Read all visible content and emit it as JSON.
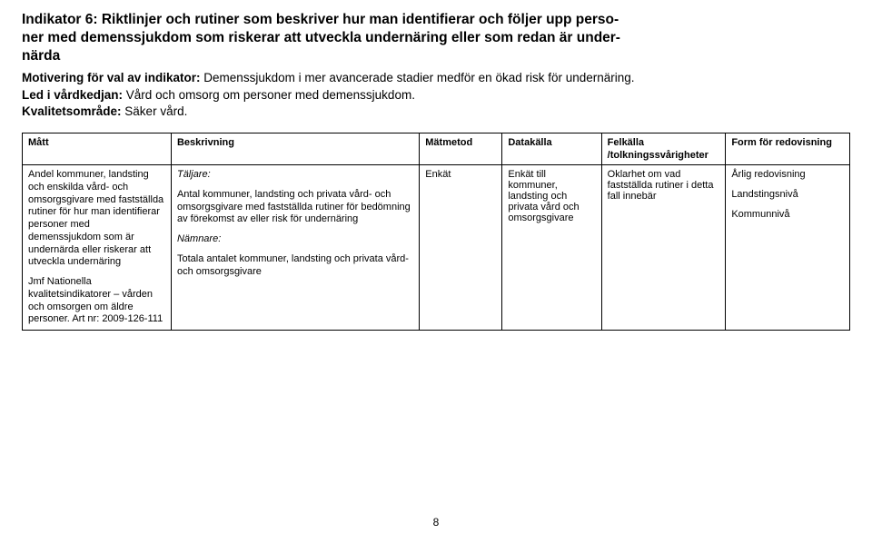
{
  "heading": {
    "line1": "Indikator 6: Riktlinjer och rutiner som beskriver hur man identifierar och följer upp perso-",
    "line2": "ner med demenssjukdom som riskerar att utveckla undernäring eller som redan är under-",
    "line3": "närda"
  },
  "sub": {
    "motivering_label": "Motivering för val av indikator:",
    "motivering_text": " Demenssjukdom i mer avancerade stadier medför en ökad risk för undernäring.",
    "led_label": "Led i vårdkedjan:",
    "led_text": " Vård och omsorg om personer med demenssjukdom.",
    "kvalitet_label": "Kvalitetsområde:",
    "kvalitet_text": " Säker vård."
  },
  "table": {
    "headers": {
      "matt": "Mått",
      "beskrivning": "Beskrivning",
      "matmetod": "Mätmetod",
      "datakalla": "Datakälla",
      "felkalla": "Felkälla",
      "felkalla_sub": "/tolkningssvårigheter",
      "form": "Form för redovisning"
    },
    "row": {
      "matt": {
        "p1": "Andel kommuner, landsting och enskilda vård- och omsorgsgivare  med fastställda rutiner  för hur man identifierar personer med demenssjukdom som är undernärda eller riskerar att utveckla undernäring",
        "p2": "Jmf Nationella kvalitetsindikatorer – vården och omsorgen om äldre personer. Art nr: 2009-126-111"
      },
      "beskrivning": {
        "taljare_label": "Täljare:",
        "taljare_text": "Antal kommuner, landsting och privata vård- och omsorgsgivare  med fastställda rutiner för bedömning av förekomst av eller risk för undernäring",
        "namnare_label": "Nämnare:",
        "namnare_text": "Totala antalet kommuner, landsting och privata vård- och omsorgsgivare"
      },
      "matmetod": "Enkät",
      "datakalla": "Enkät till kommuner, landsting och privata vård och omsorgsgivare",
      "felkalla": "Oklarhet om vad fastställda rutiner i detta fall innebär",
      "form": {
        "p1": "Årlig redovisning",
        "p2": "Landstingsnivå",
        "p3": "Kommunnivå"
      }
    }
  },
  "page_number": "8"
}
